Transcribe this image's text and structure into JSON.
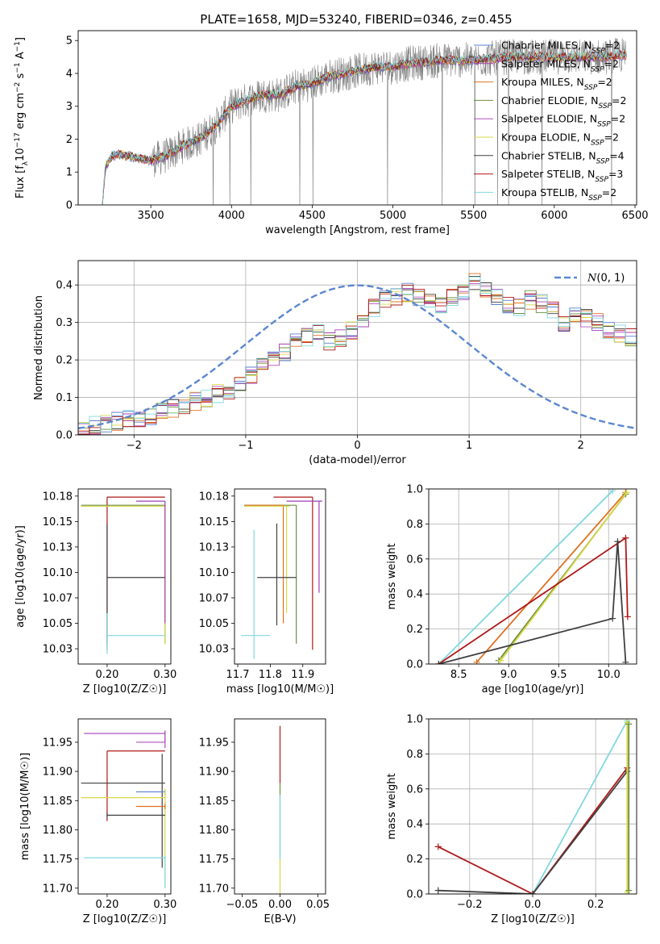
{
  "figure": {
    "title": "PLATE=1658, MJD=53240, FIBERID=0346, z=0.455"
  },
  "colors": {
    "chabrier_miles": "#5b7fd0",
    "salpeter_miles": "#a040b8",
    "kroupa_miles": "#e07020",
    "chabrier_elodie": "#6b8e3e",
    "salpeter_elodie": "#b050c0",
    "kroupa_elodie": "#d8d848",
    "chabrier_stelib": "#404040",
    "salpeter_stelib": "#b01818",
    "kroupa_stelib": "#80d8e0",
    "observed": "#808080",
    "normal": "#5b87d0"
  },
  "chart_data": [
    {
      "id": "spectrum",
      "type": "line",
      "xlabel": "wavelength [Angstrom, rest frame]",
      "ylabel": "Flux [f_λ 10^-17 erg cm^-2 s^-1 A^-1]",
      "xlim": [
        3050,
        6510
      ],
      "ylim": [
        0,
        5.3
      ],
      "xticks": [
        3500,
        4000,
        4500,
        5000,
        5500,
        6000,
        6500
      ],
      "yticks": [
        0,
        1,
        2,
        3,
        4,
        5
      ],
      "legend": "right",
      "legend_entries": [
        {
          "label": "Chabrier MILES, N",
          "sub": "SSP",
          "tail": "=2",
          "color_key": "chabrier_miles"
        },
        {
          "label": "Salpeter MILES, N",
          "sub": "SSP",
          "tail": "=2",
          "color_key": "salpeter_miles"
        },
        {
          "label": "Kroupa MILES, N",
          "sub": "SSP",
          "tail": "=2",
          "color_key": "kroupa_miles"
        },
        {
          "label": "Chabrier ELODIE, N",
          "sub": "SSP",
          "tail": "=2",
          "color_key": "chabrier_elodie"
        },
        {
          "label": "Salpeter ELODIE, N",
          "sub": "SSP",
          "tail": "=2",
          "color_key": "salpeter_elodie"
        },
        {
          "label": "Kroupa ELODIE, N",
          "sub": "SSP",
          "tail": "=2",
          "color_key": "kroupa_elodie"
        },
        {
          "label": "Chabrier STELIB, N",
          "sub": "SSP",
          "tail": "=4",
          "color_key": "chabrier_stelib"
        },
        {
          "label": "Salpeter STELIB, N",
          "sub": "SSP",
          "tail": "=3",
          "color_key": "salpeter_stelib"
        },
        {
          "label": "Kroupa STELIB, N",
          "sub": "SSP",
          "tail": "=2",
          "color_key": "kroupa_stelib"
        }
      ],
      "continuum_nodes": [
        [
          3200,
          0
        ],
        [
          3220,
          1.2
        ],
        [
          3260,
          1.5
        ],
        [
          3300,
          1.55
        ],
        [
          3400,
          1.45
        ],
        [
          3500,
          1.35
        ],
        [
          3600,
          1.5
        ],
        [
          3700,
          1.8
        ],
        [
          3800,
          2.0
        ],
        [
          3900,
          2.4
        ],
        [
          4000,
          3.0
        ],
        [
          4100,
          3.2
        ],
        [
          4200,
          3.35
        ],
        [
          4300,
          3.35
        ],
        [
          4400,
          3.6
        ],
        [
          4500,
          3.7
        ],
        [
          4600,
          3.9
        ],
        [
          4700,
          4.0
        ],
        [
          4800,
          4.1
        ],
        [
          4900,
          4.2
        ],
        [
          5000,
          4.2
        ],
        [
          5100,
          4.3
        ],
        [
          5200,
          4.35
        ],
        [
          5300,
          4.4
        ],
        [
          5400,
          4.4
        ],
        [
          5500,
          4.4
        ],
        [
          5600,
          4.45
        ],
        [
          5700,
          4.5
        ],
        [
          5800,
          4.5
        ],
        [
          5900,
          4.5
        ],
        [
          6000,
          4.5
        ],
        [
          6100,
          4.5
        ],
        [
          6200,
          4.5
        ],
        [
          6300,
          4.5
        ],
        [
          6400,
          4.55
        ],
        [
          6450,
          4.55
        ]
      ]
    },
    {
      "id": "residuals",
      "type": "line",
      "xlabel": "(data-model)/error",
      "ylabel": "Normed distribution",
      "xlim": [
        -2.5,
        2.5
      ],
      "ylim": [
        0,
        0.465
      ],
      "xticks": [
        -2,
        -1,
        0,
        1,
        2
      ],
      "yticks": [
        0.0,
        0.1,
        0.2,
        0.3,
        0.4
      ],
      "grid": true,
      "legend": "top-right",
      "legend_label": "N(0,1)",
      "hist_bins_left": -2.5,
      "hist_bin_width": 0.1,
      "hist_envelope": [
        0.02,
        0.025,
        0.03,
        0.035,
        0.04,
        0.045,
        0.05,
        0.06,
        0.07,
        0.08,
        0.09,
        0.1,
        0.11,
        0.12,
        0.14,
        0.16,
        0.18,
        0.2,
        0.22,
        0.25,
        0.26,
        0.27,
        0.25,
        0.26,
        0.28,
        0.3,
        0.34,
        0.36,
        0.37,
        0.38,
        0.37,
        0.36,
        0.35,
        0.37,
        0.38,
        0.41,
        0.39,
        0.37,
        0.35,
        0.34,
        0.36,
        0.35,
        0.33,
        0.3,
        0.32,
        0.31,
        0.3,
        0.28,
        0.27,
        0.26,
        0.25,
        0.22,
        0.2,
        0.19,
        0.17,
        0.15,
        0.14,
        0.13,
        0.12,
        0.11,
        0.1,
        0.09,
        0.08,
        0.07,
        0.06,
        0.05,
        0.045,
        0.04,
        0.035,
        0.03
      ]
    },
    {
      "id": "age_vs_Z",
      "type": "scatter",
      "xlabel": "Z [log10(Z/Z☉)]",
      "ylabel": "age [log10(age/yr)]",
      "xlim": [
        0.15,
        0.31
      ],
      "ylim": [
        10.01,
        10.182
      ],
      "xticks": [
        0.2,
        0.3
      ],
      "yticks": [
        10.025,
        10.05,
        10.075,
        10.1,
        10.125,
        10.15,
        10.175
      ],
      "errorbars": [
        {
          "color_key": "salpeter_stelib",
          "x": 0.2,
          "xerr": [
            0.2,
            0.3
          ],
          "y": 10.174,
          "yerr": [
            10.024,
            10.174
          ]
        },
        {
          "color_key": "chabrier_elodie",
          "x": 0.3,
          "xerr": [
            0.155,
            0.3
          ],
          "y": 10.166,
          "yerr": [
            10.03,
            10.166
          ]
        },
        {
          "color_key": "kroupa_elodie",
          "x": 0.3,
          "xerr": [
            0.155,
            0.3
          ],
          "y": 10.165,
          "yerr": [
            10.03,
            10.165
          ]
        },
        {
          "color_key": "salpeter_miles",
          "x": 0.3,
          "xerr": [
            0.25,
            0.3
          ],
          "y": 10.17,
          "yerr": [
            10.05,
            10.17
          ]
        },
        {
          "color_key": "chabrier_stelib",
          "x": 0.2,
          "xerr": [
            0.2,
            0.3
          ],
          "y": 10.095,
          "yerr": [
            10.03,
            10.148
          ]
        },
        {
          "color_key": "kroupa_stelib",
          "x": 0.2,
          "xerr": [
            0.2,
            0.3
          ],
          "y": 10.038,
          "yerr": [
            10.02,
            10.06
          ]
        }
      ]
    },
    {
      "id": "age_vs_mass",
      "type": "scatter",
      "xlabel": "mass [log10(M/M☉)]",
      "ylabel": "",
      "xlim": [
        11.69,
        11.97
      ],
      "ylim": [
        10.01,
        10.182
      ],
      "xticks": [
        11.7,
        11.8,
        11.9
      ],
      "yticks": [
        10.025,
        10.05,
        10.075,
        10.1,
        10.125,
        10.15,
        10.175
      ],
      "errorbars": [
        {
          "color_key": "salpeter_stelib",
          "x": 11.93,
          "xerr": [
            11.81,
            11.93
          ],
          "y": 10.174,
          "yerr": [
            10.024,
            10.174
          ]
        },
        {
          "color_key": "salpeter_miles",
          "x": 11.95,
          "xerr": [
            11.85,
            11.96
          ],
          "y": 10.17,
          "yerr": [
            10.08,
            10.17
          ]
        },
        {
          "color_key": "chabrier_elodie",
          "x": 11.88,
          "xerr": [
            11.72,
            11.88
          ],
          "y": 10.166,
          "yerr": [
            10.03,
            10.166
          ]
        },
        {
          "color_key": "kroupa_miles",
          "x": 11.84,
          "xerr": [
            11.72,
            11.84
          ],
          "y": 10.166,
          "yerr": [
            10.05,
            10.166
          ]
        },
        {
          "color_key": "kroupa_elodie",
          "x": 11.85,
          "xerr": [
            11.72,
            11.86
          ],
          "y": 10.165,
          "yerr": [
            10.06,
            10.165
          ]
        },
        {
          "color_key": "chabrier_stelib",
          "x": 11.82,
          "xerr": [
            11.76,
            11.88
          ],
          "y": 10.095,
          "yerr": [
            10.048,
            10.148
          ]
        },
        {
          "color_key": "kroupa_stelib",
          "x": 11.75,
          "xerr": [
            11.71,
            11.8
          ],
          "y": 10.038,
          "yerr": [
            10.015,
            10.142
          ]
        }
      ]
    },
    {
      "id": "mass_weight_vs_age",
      "type": "line",
      "xlabel": "age [log10(age/yr)]",
      "ylabel": "mass weight",
      "xlim": [
        8.2,
        10.28
      ],
      "ylim": [
        0,
        1
      ],
      "xticks": [
        8.5,
        9.0,
        9.5,
        10.0
      ],
      "yticks": [
        0.0,
        0.2,
        0.4,
        0.6,
        0.8,
        1.0
      ],
      "grid": true,
      "series": [
        {
          "color_key": "kroupa_stelib",
          "x": [
            8.3,
            10.04
          ],
          "y": [
            0.0,
            0.99
          ]
        },
        {
          "color_key": "kroupa_miles",
          "x": [
            8.68,
            10.17
          ],
          "y": [
            0.01,
            0.98
          ]
        },
        {
          "color_key": "chabrier_elodie",
          "x": [
            8.9,
            10.17
          ],
          "y": [
            0.02,
            0.97
          ]
        },
        {
          "color_key": "kroupa_elodie",
          "x": [
            8.92,
            10.18
          ],
          "y": [
            0.02,
            0.98
          ]
        },
        {
          "color_key": "salpeter_stelib",
          "x": [
            8.3,
            10.17,
            10.19
          ],
          "y": [
            0.0,
            0.72,
            0.27
          ]
        },
        {
          "color_key": "chabrier_stelib",
          "x": [
            8.3,
            10.04,
            10.09,
            10.17
          ],
          "y": [
            0.0,
            0.26,
            0.7,
            0.01
          ]
        }
      ]
    },
    {
      "id": "mass_vs_Z",
      "type": "scatter",
      "xlabel": "Z [log10(Z/Z☉)]",
      "ylabel": "mass [log10(M/M☉)]",
      "xlim": [
        0.15,
        0.31
      ],
      "ylim": [
        11.69,
        11.99
      ],
      "xticks": [
        0.2,
        0.3
      ],
      "yticks": [
        11.7,
        11.75,
        11.8,
        11.85,
        11.9,
        11.95
      ],
      "errorbars": [
        {
          "color_key": "salpeter_miles",
          "x": 0.3,
          "xerr": [
            0.16,
            0.3
          ],
          "y": 11.965,
          "yerr": [
            11.95,
            11.97
          ]
        },
        {
          "color_key": "salpeter_elodie",
          "x": 0.3,
          "xerr": [
            0.25,
            0.3
          ],
          "y": 11.95,
          "yerr": [
            11.94,
            11.96
          ]
        },
        {
          "color_key": "salpeter_stelib",
          "x": 0.2,
          "xerr": [
            0.2,
            0.3
          ],
          "y": 11.935,
          "yerr": [
            11.815,
            11.935
          ]
        },
        {
          "color_key": "chabrier_stelib",
          "x": 0.295,
          "xerr": [
            0.155,
            0.3
          ],
          "y": 11.88,
          "yerr": [
            11.735,
            11.93
          ]
        },
        {
          "color_key": "chabrier_miles",
          "x": 0.3,
          "xerr": [
            0.25,
            0.3
          ],
          "y": 11.865,
          "yerr": [
            11.86,
            11.87
          ]
        },
        {
          "color_key": "kroupa_elodie",
          "x": 0.3,
          "xerr": [
            0.155,
            0.3
          ],
          "y": 11.855,
          "yerr": [
            11.7,
            11.87
          ]
        },
        {
          "color_key": "kroupa_miles",
          "x": 0.3,
          "xerr": [
            0.25,
            0.3
          ],
          "y": 11.84,
          "yerr": [
            11.835,
            11.845
          ]
        },
        {
          "color_key": "chabrier_stelib",
          "x": 0.2,
          "xerr": [
            0.2,
            0.3
          ],
          "y": 11.825,
          "yerr": [
            11.82,
            11.83
          ]
        },
        {
          "color_key": "kroupa_stelib",
          "x": 0.3,
          "xerr": [
            0.16,
            0.3
          ],
          "y": 11.752,
          "yerr": [
            11.7,
            11.755
          ]
        }
      ]
    },
    {
      "id": "mass_vs_ebv",
      "type": "scatter",
      "xlabel": "E(B-V)",
      "ylabel": "",
      "xlim": [
        -0.06,
        0.06
      ],
      "ylim": [
        11.69,
        11.99
      ],
      "xticks": [
        -0.05,
        0.0,
        0.05
      ],
      "yticks": [
        11.7,
        11.75,
        11.8,
        11.85,
        11.9,
        11.95
      ],
      "errorbars": [
        {
          "color_key": "salpeter_stelib",
          "x": 0.0,
          "xerr": [
            0.0,
            0.0
          ],
          "y": 11.935,
          "yerr": [
            11.88,
            11.978
          ]
        },
        {
          "color_key": "chabrier_elodie",
          "x": 0.0,
          "xerr": [
            0.0,
            0.0
          ],
          "y": 11.85,
          "yerr": [
            11.75,
            11.88
          ]
        },
        {
          "color_key": "kroupa_elodie",
          "x": 0.0,
          "xerr": [
            0.0,
            0.0
          ],
          "y": 11.72,
          "yerr": [
            11.69,
            11.75
          ]
        },
        {
          "color_key": "kroupa_stelib",
          "x": 0.0,
          "xerr": [
            0.0,
            0.0
          ],
          "y": 11.8,
          "yerr": [
            11.75,
            11.86
          ]
        }
      ]
    },
    {
      "id": "mass_weight_vs_Z",
      "type": "line",
      "xlabel": "Z [log10(Z/Z☉)]",
      "ylabel": "mass weight",
      "xlim": [
        -0.33,
        0.33
      ],
      "ylim": [
        0,
        1
      ],
      "xticks": [
        -0.2,
        0.0,
        0.2
      ],
      "yticks": [
        0.0,
        0.2,
        0.4,
        0.6,
        0.8,
        1.0
      ],
      "grid": true,
      "series": [
        {
          "color_key": "kroupa_stelib",
          "x": [
            0.0,
            0.3
          ],
          "y": [
            0.0,
            0.99
          ]
        },
        {
          "color_key": "salpeter_stelib",
          "x": [
            -0.3,
            0.0,
            0.3
          ],
          "y": [
            0.27,
            0.0,
            0.72
          ]
        },
        {
          "color_key": "chabrier_stelib",
          "x": [
            -0.3,
            0.0,
            0.3
          ],
          "y": [
            0.02,
            0.0,
            0.7
          ]
        },
        {
          "color_key": "kroupa_elodie",
          "x": [
            0.3,
            0.3
          ],
          "y": [
            0.01,
            0.98
          ]
        },
        {
          "color_key": "chabrier_elodie",
          "x": [
            0.305,
            0.305
          ],
          "y": [
            0.02,
            0.97
          ]
        }
      ]
    }
  ]
}
